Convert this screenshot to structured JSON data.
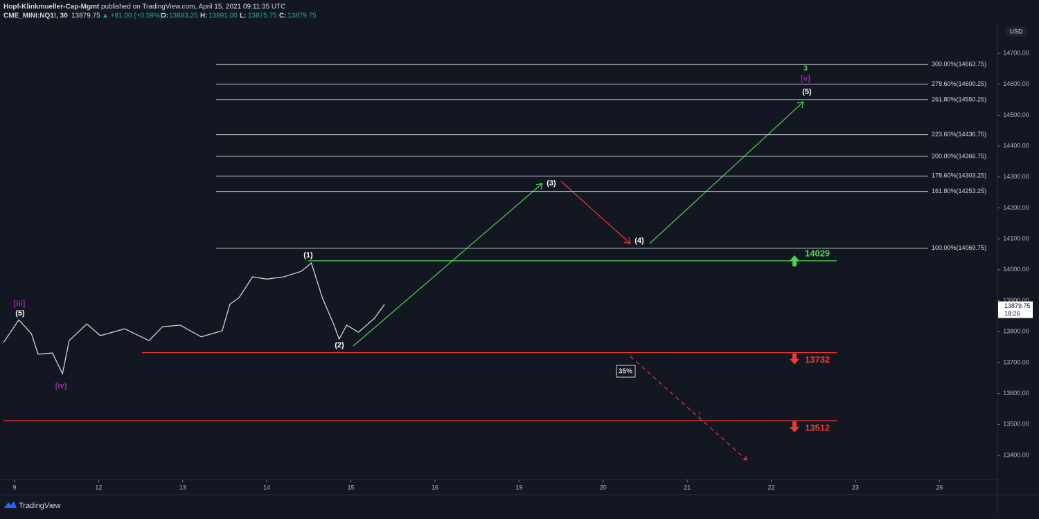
{
  "header": {
    "author": "Hopf-Klinkmueller-Cap-Mgmt",
    "published": "published on TradingView.com, April 15, 2021 09:11:35 UTC",
    "symbol": "CME_MINI:NQ1!, 30",
    "last": "13879.75",
    "change": "▲ +81.00 (+0.59%)",
    "ohlc": [
      {
        "label": "O:",
        "value": "13883.25"
      },
      {
        "label": "H:",
        "value": "13891.00"
      },
      {
        "label": "L:",
        "value": "13875.75"
      },
      {
        "label": "C:",
        "value": "13879.75"
      }
    ]
  },
  "brand": "TradingView",
  "chart_data": {
    "type": "line",
    "currency": "USD",
    "color": "#d1d4dc",
    "xlim": [
      -0.173,
      11.689
    ],
    "xticks": [
      {
        "value": 0,
        "label": "9"
      },
      {
        "value": 1,
        "label": "12"
      },
      {
        "value": 2,
        "label": "13"
      },
      {
        "value": 3,
        "label": "14"
      },
      {
        "value": 4,
        "label": "15"
      },
      {
        "value": 5,
        "label": "16"
      },
      {
        "value": 6,
        "label": "19"
      },
      {
        "value": 7,
        "label": "20"
      },
      {
        "value": 8,
        "label": "21"
      },
      {
        "value": 9,
        "label": "22"
      },
      {
        "value": 10,
        "label": "23"
      },
      {
        "value": 11,
        "label": "26"
      }
    ],
    "ylim": [
      13321.7,
      14794
    ],
    "yticks": [
      {
        "value": 13400,
        "label": "13400.00"
      },
      {
        "value": 13500,
        "label": "13500.00"
      },
      {
        "value": 13600,
        "label": "13600.00"
      },
      {
        "value": 13700,
        "label": "13700.00"
      },
      {
        "value": 13800,
        "label": "13800.00"
      },
      {
        "value": 13900,
        "label": "13900.00"
      },
      {
        "value": 14000,
        "label": "14000.00"
      },
      {
        "value": 14100,
        "label": "14100.00"
      },
      {
        "value": 14200,
        "label": "14200.00"
      },
      {
        "value": 14300,
        "label": "14300.00"
      },
      {
        "value": 14400,
        "label": "14400.00"
      },
      {
        "value": 14500,
        "label": "14500.00"
      },
      {
        "value": 14600,
        "label": "14600.00"
      },
      {
        "value": 14700,
        "label": "14700.00"
      }
    ],
    "x": [
      -0.13,
      0.05,
      0.2,
      0.28,
      0.45,
      0.57,
      0.65,
      0.86,
      1.02,
      1.31,
      1.6,
      1.76,
      1.97,
      2.22,
      2.47,
      2.56,
      2.67,
      2.83,
      3.0,
      3.2,
      3.41,
      3.53,
      3.66,
      3.8,
      3.86,
      3.95,
      4.09,
      4.28,
      4.4
    ],
    "values": [
      13765,
      13838,
      13794,
      13727,
      13731,
      13664,
      13771,
      13825,
      13787,
      13809,
      13771,
      13816,
      13821,
      13783,
      13803,
      13888,
      13910,
      13977,
      13970,
      13977,
      13995,
      14022,
      13910,
      13821,
      13776,
      13821,
      13798,
      13843,
      13888
    ],
    "fib_levels": [
      {
        "label": "300.00%(14663.75)",
        "value": 14663.75
      },
      {
        "label": "278.60%(14600.25)",
        "value": 14600.25
      },
      {
        "label": "261.80%(14550.25)",
        "value": 14550.25
      },
      {
        "label": "223.60%(14436.75)",
        "value": 14436.75
      },
      {
        "label": "200.00%(14366.75)",
        "value": 14366.75
      },
      {
        "label": "178.60%(14303.25)",
        "value": 14303.25
      },
      {
        "label": "161.80%(14253.25)",
        "value": 14253.25
      },
      {
        "label": "100.00%(14069.75)",
        "value": 14069.75
      }
    ],
    "levels": [
      {
        "value": 14029,
        "color": "#4cd14c"
      },
      {
        "value": 13732,
        "color": "#f23a2f"
      },
      {
        "value": 13512,
        "color": "#f23a2f"
      }
    ],
    "last_price": {
      "value": 13879.75,
      "time": "18:26"
    },
    "annotations": [
      "[iii]",
      "(5)",
      "[iv]",
      "(1)",
      "(2)",
      "(3)",
      "(4)",
      "(5)",
      "3",
      "[v]",
      "35%"
    ]
  }
}
